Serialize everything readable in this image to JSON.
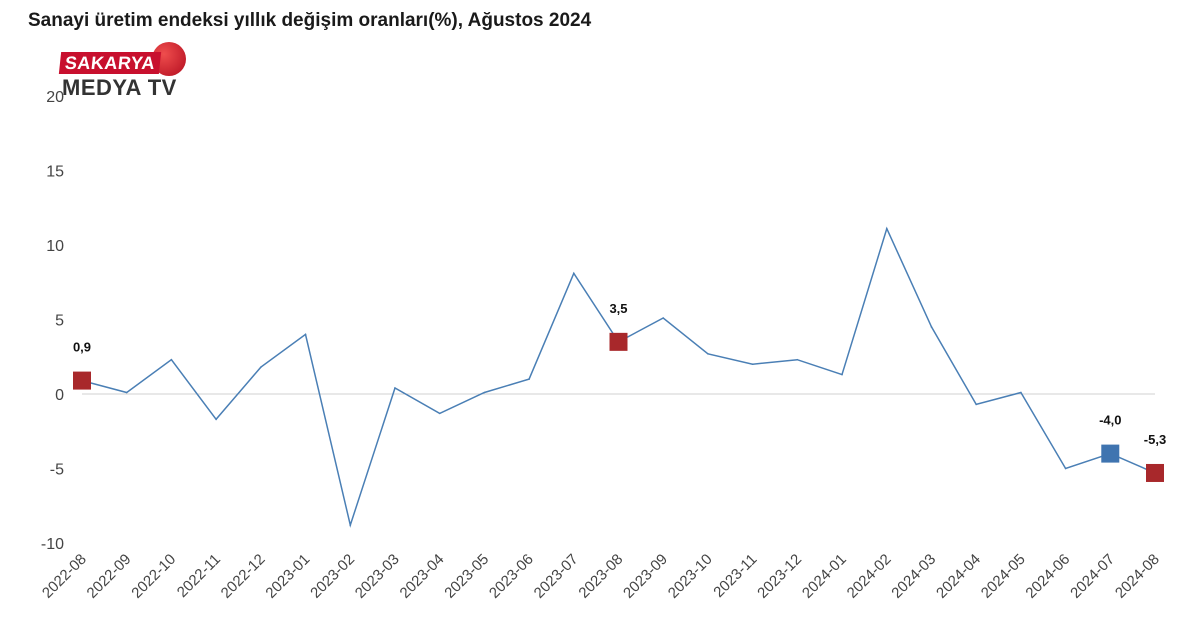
{
  "header": {
    "title": "Sanayi üretim endeksi yıllık değişim oranları(%), Ağustos 2024"
  },
  "logo": {
    "top_text": "SAKARYA",
    "bottom_text": "MEDYA TV",
    "color": "#c8102e"
  },
  "chart_data": {
    "type": "line",
    "title": "Sanayi üretim endeksi yıllık değişim oranları(%), Ağustos 2024",
    "xlabel": "",
    "ylabel": "",
    "ylim": [
      -10,
      20
    ],
    "yticks": [
      "20",
      "15",
      "10",
      "5",
      "0",
      "-5",
      "-10"
    ],
    "categories": [
      "2022-08",
      "2022-09",
      "2022-10",
      "2022-11",
      "2022-12",
      "2023-01",
      "2023-02",
      "2023-03",
      "2023-04",
      "2023-05",
      "2023-06",
      "2023-07",
      "2023-08",
      "2023-09",
      "2023-10",
      "2023-11",
      "2023-12",
      "2024-01",
      "2024-02",
      "2024-03",
      "2024-04",
      "2024-05",
      "2024-06",
      "2024-07",
      "2024-08"
    ],
    "series": [
      {
        "values": [
          0.9,
          0.1,
          2.3,
          -1.7,
          1.8,
          4.0,
          -8.8,
          0.4,
          -1.3,
          0.1,
          1.0,
          8.1,
          3.5,
          5.1,
          2.7,
          2.0,
          2.3,
          1.3,
          11.1,
          4.5,
          -0.7,
          0.1,
          -5.0,
          -4.0,
          -5.3
        ],
        "color": "#4a7fb5"
      }
    ],
    "highlights": [
      {
        "index": 0,
        "label": "0,9",
        "color": "#a8282b"
      },
      {
        "index": 12,
        "label": "3,5",
        "color": "#a8282b"
      },
      {
        "index": 23,
        "label": "-4,0",
        "color": "#3f74b0"
      },
      {
        "index": 24,
        "label": "-5,3",
        "color": "#a8282b"
      }
    ],
    "grid": false,
    "legend": "none"
  }
}
